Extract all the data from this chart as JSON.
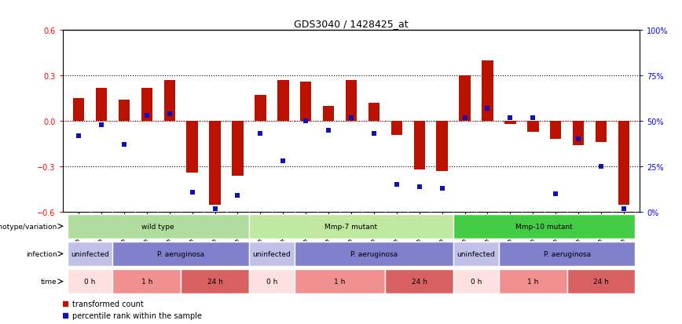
{
  "title": "GDS3040 / 1428425_at",
  "samples": [
    "GSM196062",
    "GSM196063",
    "GSM196064",
    "GSM196065",
    "GSM196066",
    "GSM196067",
    "GSM196068",
    "GSM196069",
    "GSM196070",
    "GSM196071",
    "GSM196072",
    "GSM196073",
    "GSM196074",
    "GSM196075",
    "GSM196076",
    "GSM196077",
    "GSM196078",
    "GSM196079",
    "GSM196080",
    "GSM196081",
    "GSM196082",
    "GSM196083",
    "GSM196084",
    "GSM196085",
    "GSM196086"
  ],
  "bar_values": [
    0.15,
    0.22,
    0.14,
    0.22,
    0.27,
    -0.34,
    -0.55,
    -0.36,
    0.17,
    0.27,
    0.26,
    0.1,
    0.27,
    0.12,
    -0.09,
    -0.32,
    -0.33,
    0.3,
    0.4,
    -0.02,
    -0.07,
    -0.12,
    -0.16,
    -0.14,
    -0.55
  ],
  "blue_values_pct": [
    42,
    48,
    37,
    53,
    54,
    11,
    2,
    9,
    43,
    28,
    50,
    45,
    52,
    43,
    15,
    14,
    13,
    52,
    57,
    52,
    52,
    10,
    40,
    25,
    2
  ],
  "bar_color": "#bb1100",
  "blue_color": "#1111bb",
  "ylim_left": [
    -0.6,
    0.6
  ],
  "yticks_left": [
    -0.6,
    -0.3,
    0.0,
    0.3,
    0.6
  ],
  "yticks_right_pct": [
    0,
    25,
    50,
    75,
    100
  ],
  "hline_vals": [
    -0.3,
    0.0,
    0.3
  ],
  "genotype_groups": [
    {
      "label": "wild type",
      "start": 0,
      "end": 8,
      "color": "#b0dca0"
    },
    {
      "label": "Mmp-7 mutant",
      "start": 8,
      "end": 17,
      "color": "#c0e8a0"
    },
    {
      "label": "Mmp-10 mutant",
      "start": 17,
      "end": 25,
      "color": "#44cc44"
    }
  ],
  "infection_groups": [
    {
      "label": "uninfected",
      "start": 0,
      "end": 2,
      "color": "#c0c0e8"
    },
    {
      "label": "P. aeruginosa",
      "start": 2,
      "end": 8,
      "color": "#8080cc"
    },
    {
      "label": "uninfected",
      "start": 8,
      "end": 10,
      "color": "#c0c0e8"
    },
    {
      "label": "P. aeruginosa",
      "start": 10,
      "end": 17,
      "color": "#8080cc"
    },
    {
      "label": "uninfected",
      "start": 17,
      "end": 19,
      "color": "#c0c0e8"
    },
    {
      "label": "P. aeruginosa",
      "start": 19,
      "end": 25,
      "color": "#8080cc"
    }
  ],
  "time_groups": [
    {
      "label": "0 h",
      "start": 0,
      "end": 2,
      "color": "#fde0e0"
    },
    {
      "label": "1 h",
      "start": 2,
      "end": 5,
      "color": "#f09090"
    },
    {
      "label": "24 h",
      "start": 5,
      "end": 8,
      "color": "#d86060"
    },
    {
      "label": "0 h",
      "start": 8,
      "end": 10,
      "color": "#fde0e0"
    },
    {
      "label": "1 h",
      "start": 10,
      "end": 14,
      "color": "#f09090"
    },
    {
      "label": "24 h",
      "start": 14,
      "end": 17,
      "color": "#d86060"
    },
    {
      "label": "0 h",
      "start": 17,
      "end": 19,
      "color": "#fde0e0"
    },
    {
      "label": "1 h",
      "start": 19,
      "end": 22,
      "color": "#f09090"
    },
    {
      "label": "24 h",
      "start": 22,
      "end": 25,
      "color": "#d86060"
    }
  ],
  "row_labels_ordered": [
    "genotype/variation",
    "infection",
    "time"
  ],
  "legend_bar_label": "transformed count",
  "legend_blue_label": "percentile rank within the sample",
  "xtick_bg": "#d8d8d8"
}
